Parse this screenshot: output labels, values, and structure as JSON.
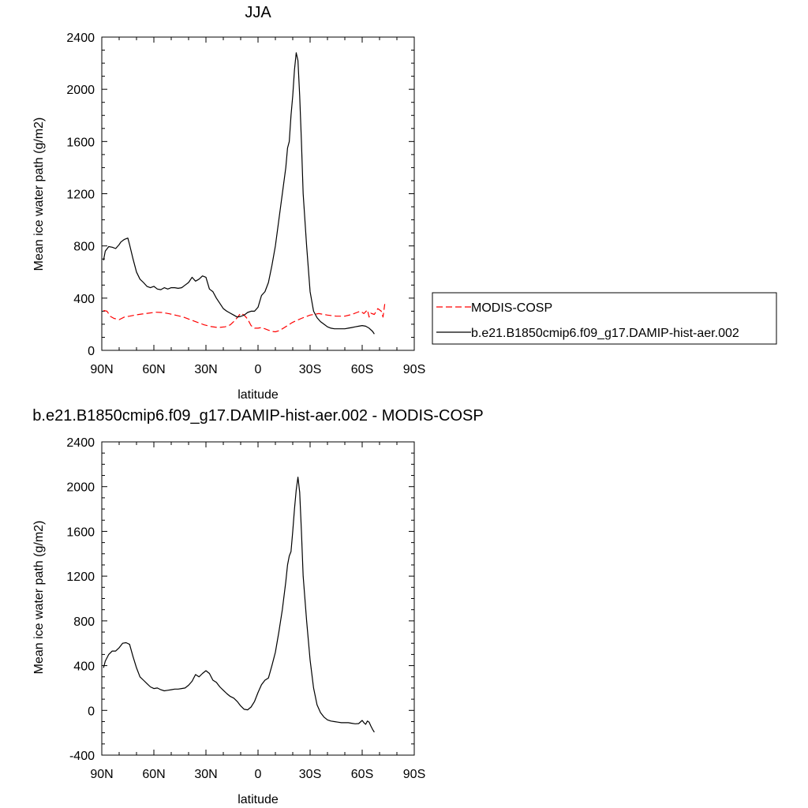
{
  "chart_data": [
    {
      "type": "line",
      "title": "JJA",
      "xlabel": "latitude",
      "ylabel": "Mean ice water path (g/m2)",
      "xlim": [
        90,
        -90
      ],
      "ylim": [
        0,
        2400
      ],
      "yticks": [
        0,
        400,
        800,
        1200,
        1600,
        2000,
        2400
      ],
      "xticks": [
        90,
        60,
        30,
        0,
        -30,
        -60,
        -90
      ],
      "xtick_labels": [
        "90N",
        "60N",
        "30N",
        "0",
        "30S",
        "60S",
        "90S"
      ],
      "legend_position": "right",
      "series": [
        {
          "name": "MODIS-COSP",
          "color": "#ff0000",
          "dash": "dashed",
          "x": [
            89,
            87,
            85,
            83,
            80,
            77,
            74,
            71,
            67,
            63,
            59,
            55,
            51,
            47,
            43,
            39,
            35,
            31,
            27,
            23,
            19,
            16,
            14,
            12,
            10,
            8,
            6,
            4,
            2,
            0,
            -2,
            -4,
            -6,
            -8,
            -10,
            -12,
            -14,
            -17,
            -20,
            -25,
            -30,
            -35,
            -40,
            -45,
            -50,
            -54,
            -57,
            -59,
            -61,
            -63,
            -64,
            -65,
            -67,
            -69,
            -71,
            -72,
            -73
          ],
          "y": [
            305,
            300,
            260,
            245,
            235,
            255,
            262,
            270,
            278,
            285,
            292,
            290,
            280,
            268,
            255,
            235,
            215,
            195,
            182,
            175,
            180,
            195,
            220,
            250,
            285,
            270,
            240,
            190,
            170,
            170,
            175,
            165,
            155,
            145,
            142,
            150,
            165,
            190,
            215,
            245,
            270,
            282,
            270,
            262,
            262,
            275,
            290,
            300,
            282,
            310,
            255,
            285,
            275,
            320,
            300,
            255,
            355
          ]
        },
        {
          "name": "b.e21.B1850cmip6.f09_g17.DAMIP-hist-aer.002",
          "color": "#000000",
          "dash": "solid",
          "x": [
            89,
            88,
            86,
            84,
            82,
            80,
            79,
            77,
            75,
            74,
            72,
            70,
            68,
            66,
            64,
            62,
            60,
            58,
            56,
            54,
            52,
            50,
            48,
            46,
            44,
            42,
            40,
            38,
            36,
            34,
            32,
            30,
            28,
            26,
            24,
            22,
            20,
            18,
            16,
            14,
            12,
            10,
            8,
            6,
            4,
            2,
            0,
            -2,
            -4,
            -6,
            -8,
            -10,
            -12,
            -14,
            -16,
            -17,
            -18,
            -19,
            -20,
            -21,
            -22,
            -23,
            -24,
            -25,
            -26,
            -28,
            -30,
            -32,
            -34,
            -36,
            -38,
            -40,
            -42,
            -44,
            -46,
            -48,
            -50,
            -52,
            -54,
            -56,
            -58,
            -60,
            -62,
            -64,
            -66,
            -67
          ],
          "y": [
            690,
            760,
            795,
            790,
            780,
            810,
            830,
            850,
            860,
            810,
            700,
            600,
            545,
            520,
            490,
            480,
            490,
            470,
            465,
            480,
            470,
            480,
            480,
            475,
            480,
            500,
            520,
            560,
            530,
            545,
            570,
            560,
            470,
            450,
            400,
            360,
            320,
            300,
            285,
            270,
            255,
            260,
            270,
            290,
            300,
            300,
            330,
            420,
            450,
            520,
            650,
            800,
            1000,
            1200,
            1400,
            1550,
            1600,
            1800,
            1950,
            2150,
            2280,
            2220,
            1950,
            1600,
            1200,
            800,
            450,
            300,
            250,
            220,
            200,
            180,
            170,
            165,
            165,
            165,
            165,
            170,
            175,
            180,
            185,
            190,
            185,
            170,
            145,
            125
          ]
        }
      ]
    },
    {
      "type": "line",
      "title": "b.e21.B1850cmip6.f09_g17.DAMIP-hist-aer.002 - MODIS-COSP",
      "xlabel": "latitude",
      "ylabel": "Mean ice water path (g/m2)",
      "xlim": [
        90,
        -90
      ],
      "ylim": [
        -400,
        2400
      ],
      "yticks": [
        -400,
        0,
        400,
        800,
        1200,
        1600,
        2000,
        2400
      ],
      "xticks": [
        90,
        60,
        30,
        0,
        -30,
        -60,
        -90
      ],
      "xtick_labels": [
        "90N",
        "60N",
        "30N",
        "0",
        "30S",
        "60S",
        "90S"
      ],
      "series": [
        {
          "color": "#000000",
          "dash": "solid",
          "x": [
            89,
            88,
            86,
            84,
            82,
            80,
            78,
            76,
            74,
            72,
            70,
            68,
            66,
            64,
            62,
            60,
            58,
            56,
            54,
            52,
            50,
            48,
            46,
            44,
            42,
            40,
            38,
            36,
            34,
            32,
            30,
            28,
            26,
            24,
            22,
            20,
            18,
            16,
            14,
            12,
            10,
            8,
            6,
            4,
            2,
            0,
            -2,
            -4,
            -6,
            -8,
            -10,
            -12,
            -14,
            -16,
            -17,
            -18,
            -19,
            -20,
            -21,
            -22,
            -23,
            -24,
            -25,
            -26,
            -28,
            -30,
            -32,
            -34,
            -36,
            -38,
            -40,
            -42,
            -44,
            -46,
            -48,
            -50,
            -52,
            -54,
            -56,
            -58,
            -60,
            -61,
            -62,
            -63,
            -64,
            -65,
            -66,
            -67
          ],
          "y": [
            380,
            440,
            500,
            530,
            530,
            560,
            600,
            605,
            590,
            480,
            380,
            300,
            270,
            240,
            210,
            195,
            200,
            185,
            175,
            180,
            185,
            190,
            190,
            195,
            200,
            225,
            260,
            320,
            300,
            330,
            355,
            330,
            270,
            250,
            210,
            180,
            150,
            125,
            110,
            80,
            40,
            10,
            5,
            30,
            80,
            160,
            230,
            270,
            290,
            400,
            520,
            700,
            900,
            1150,
            1300,
            1380,
            1420,
            1600,
            1800,
            1970,
            2085,
            1950,
            1600,
            1200,
            800,
            450,
            200,
            50,
            -20,
            -60,
            -85,
            -95,
            -100,
            -105,
            -110,
            -110,
            -110,
            -115,
            -120,
            -118,
            -90,
            -110,
            -125,
            -95,
            -105,
            -140,
            -170,
            -195
          ]
        }
      ]
    }
  ]
}
